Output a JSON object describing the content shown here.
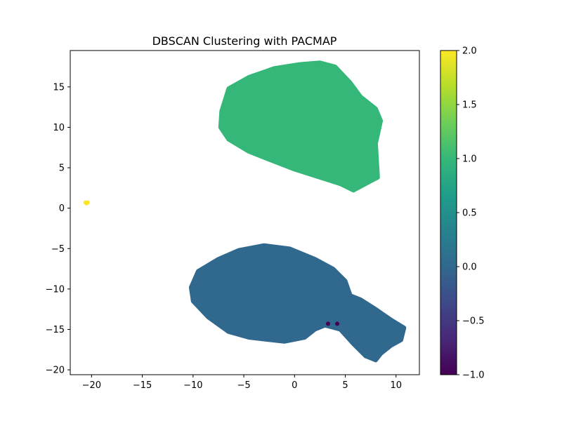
{
  "chart_data": {
    "type": "scatter",
    "title": "DBSCAN Clustering with PACMAP",
    "xlabel": "",
    "ylabel": "",
    "xlim": [
      -22.1,
      12.3
    ],
    "ylim": [
      -20.6,
      19.5
    ],
    "x_ticks": [
      -20,
      -15,
      -10,
      -5,
      0,
      5,
      10
    ],
    "y_ticks": [
      -20,
      -15,
      -10,
      -5,
      0,
      5,
      10,
      15
    ],
    "grid": false,
    "colorbar": {
      "range": [
        -1.0,
        2.0
      ],
      "ticks": [
        -1.0,
        -0.5,
        0.0,
        0.5,
        1.0,
        1.5,
        2.0
      ],
      "colormap": "viridis"
    },
    "series": [
      {
        "label_value": 1,
        "color": "#35b779",
        "kind": "dense_region",
        "outline": [
          [
            -7.2,
            12.0
          ],
          [
            -6.5,
            14.8
          ],
          [
            -4.5,
            16.2
          ],
          [
            -2.0,
            17.3
          ],
          [
            0.5,
            17.8
          ],
          [
            2.5,
            18.0
          ],
          [
            4.0,
            17.5
          ],
          [
            5.5,
            15.5
          ],
          [
            6.5,
            13.8
          ],
          [
            8.0,
            12.3
          ],
          [
            8.5,
            10.8
          ],
          [
            8.0,
            8.0
          ],
          [
            8.2,
            3.8
          ],
          [
            7.0,
            3.0
          ],
          [
            5.8,
            2.2
          ],
          [
            4.5,
            3.0
          ],
          [
            2.0,
            4.0
          ],
          [
            0.0,
            4.8
          ],
          [
            -2.5,
            6.0
          ],
          [
            -4.5,
            7.0
          ],
          [
            -6.5,
            8.5
          ],
          [
            -7.3,
            10.0
          ]
        ]
      },
      {
        "label_value": 0,
        "color": "#31688e",
        "kind": "dense_region",
        "outline": [
          [
            -10.2,
            -9.8
          ],
          [
            -9.5,
            -7.8
          ],
          [
            -7.5,
            -6.3
          ],
          [
            -5.5,
            -5.2
          ],
          [
            -3.0,
            -4.6
          ],
          [
            -0.5,
            -5.0
          ],
          [
            2.0,
            -6.3
          ],
          [
            3.8,
            -7.5
          ],
          [
            5.0,
            -9.0
          ],
          [
            5.5,
            -10.8
          ],
          [
            6.5,
            -11.3
          ],
          [
            8.0,
            -12.5
          ],
          [
            9.5,
            -13.8
          ],
          [
            10.8,
            -14.8
          ],
          [
            10.5,
            -16.3
          ],
          [
            9.5,
            -17.0
          ],
          [
            8.5,
            -18.0
          ],
          [
            8.0,
            -18.8
          ],
          [
            7.0,
            -18.3
          ],
          [
            5.8,
            -16.8
          ],
          [
            4.5,
            -15.0
          ],
          [
            3.0,
            -14.5
          ],
          [
            2.0,
            -15.0
          ],
          [
            1.0,
            -16.0
          ],
          [
            -1.0,
            -16.5
          ],
          [
            -4.5,
            -16.0
          ],
          [
            -6.5,
            -15.3
          ],
          [
            -8.5,
            -13.5
          ],
          [
            -10.0,
            -11.5
          ]
        ]
      },
      {
        "label_value": 2,
        "color": "#fde725",
        "kind": "points",
        "points": [
          [
            -20.6,
            0.7
          ],
          [
            -20.4,
            0.7
          ],
          [
            -20.5,
            0.6
          ]
        ]
      },
      {
        "label_value": -1,
        "color": "#440154",
        "kind": "points",
        "points": [
          [
            3.3,
            -14.3
          ],
          [
            4.2,
            -14.3
          ]
        ]
      }
    ]
  }
}
